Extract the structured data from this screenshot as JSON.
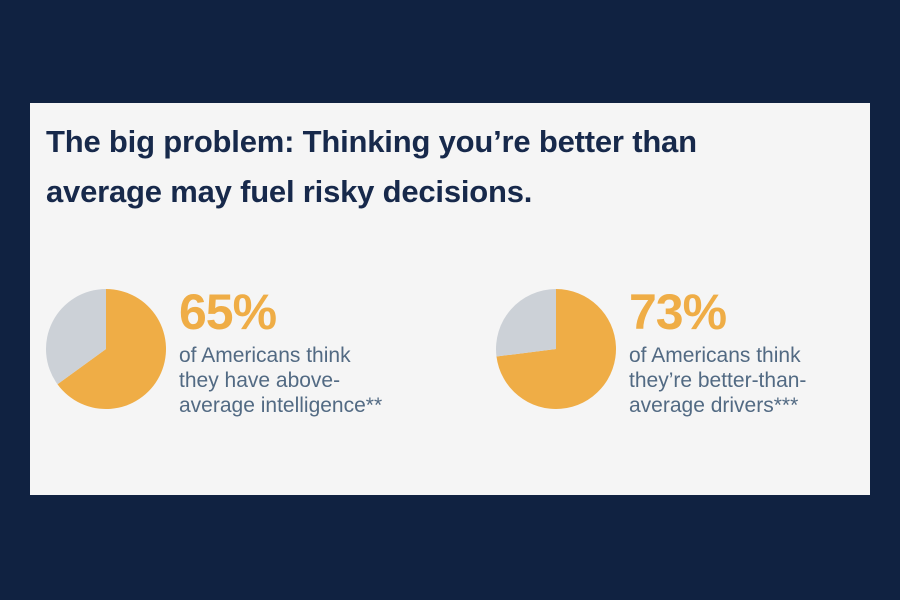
{
  "headline": {
    "lines": [
      "The big problem: Thinking you’re better than",
      "average may fuel risky decisions."
    ]
  },
  "colors": {
    "page_background": "#102241",
    "card_background": "#f5f5f5",
    "headline": "#17294b",
    "accent": "#efad46",
    "remainder": "#ccd1d7",
    "body_text": "#526a83"
  },
  "chart_data": [
    {
      "type": "pie",
      "percent": 65,
      "values": [
        65,
        35
      ],
      "slice_colors": [
        "#efad46",
        "#ccd1d7"
      ],
      "value_label": "65%",
      "caption_lines": [
        "of Americans think",
        "they have above-",
        "average intelligence**"
      ]
    },
    {
      "type": "pie",
      "percent": 73,
      "values": [
        73,
        27
      ],
      "slice_colors": [
        "#efad46",
        "#ccd1d7"
      ],
      "value_label": "73%",
      "caption_lines": [
        "of Americans think",
        "they’re better-than-",
        "average drivers***"
      ]
    }
  ]
}
